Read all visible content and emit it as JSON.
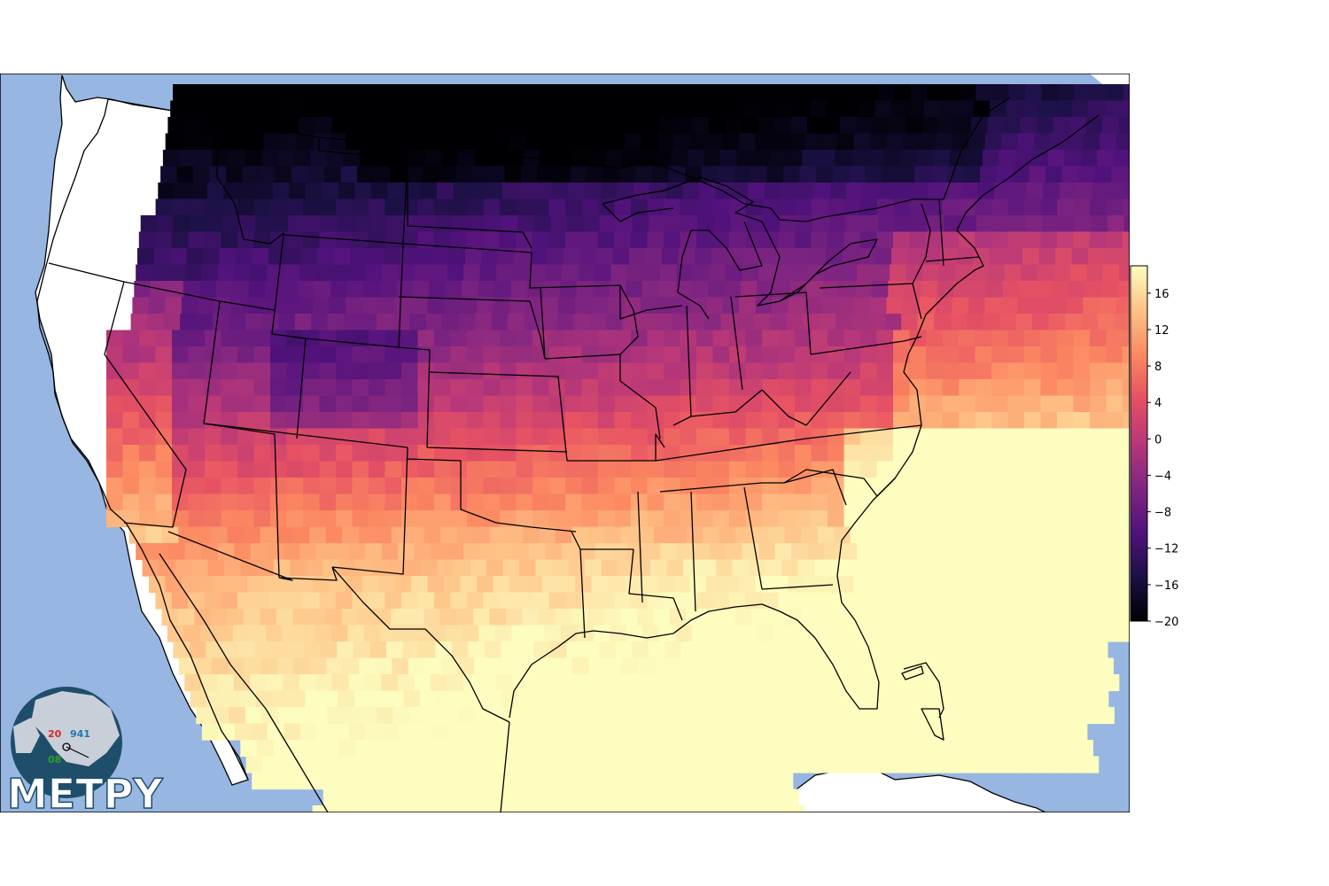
{
  "colorbar": {
    "colormap": "magma",
    "min": -20,
    "max": 19,
    "ticks": [
      "-20",
      "-16",
      "-12",
      "-8",
      "-4",
      "0",
      "4",
      "8",
      "12",
      "16"
    ]
  },
  "logo": {
    "text": "METPY",
    "station_model": {
      "temperature": "20",
      "pressure": "941",
      "dewpoint": "08"
    }
  },
  "colors": {
    "ocean": "#97b6e1",
    "land_outside": "#ffffff",
    "border": "#000000"
  }
}
